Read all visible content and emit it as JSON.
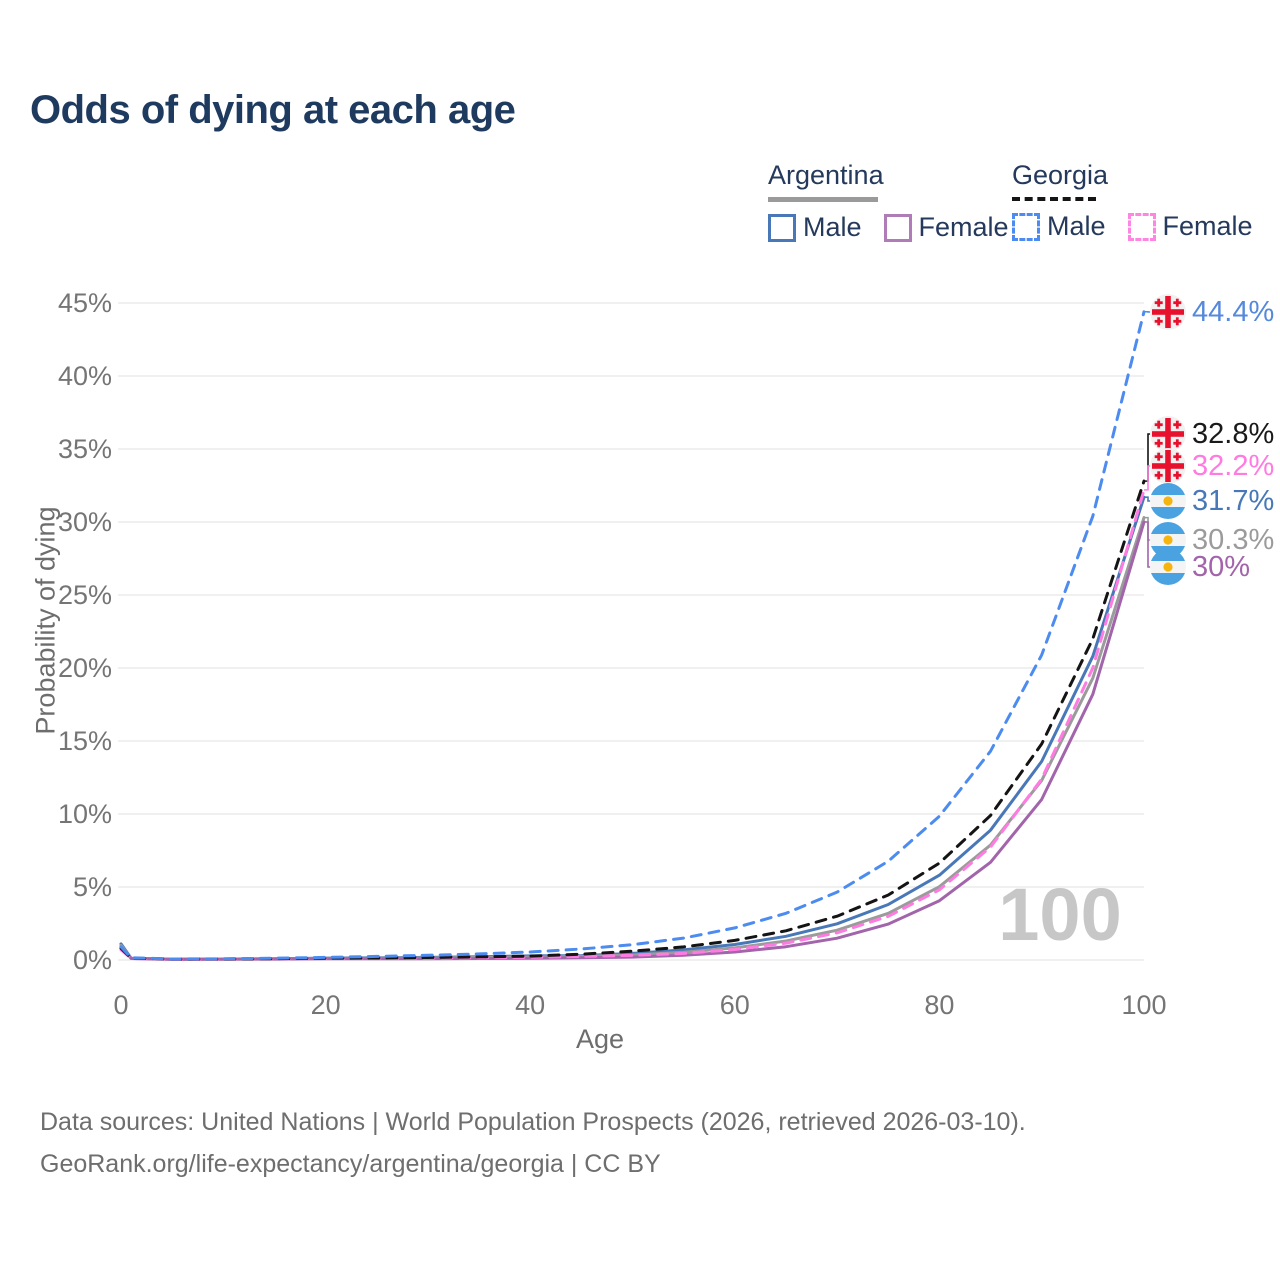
{
  "title": "Odds of dying at each age",
  "watermark": {
    "text": "100"
  },
  "legend": {
    "groups": [
      {
        "country": "Argentina",
        "style": "solid",
        "underline_color": "#9a9a9a",
        "items": [
          {
            "label": "Male",
            "color": "#4878B8"
          },
          {
            "label": "Female",
            "color": "#B07CB8"
          }
        ]
      },
      {
        "country": "Georgia",
        "style": "dashed",
        "underline_color": "#151515",
        "items": [
          {
            "label": "Male",
            "color": "#4C8BF0"
          },
          {
            "label": "Female",
            "color": "#FF85E3"
          }
        ]
      }
    ]
  },
  "axes": {
    "x": {
      "title": "Age",
      "ticks": [
        "0",
        "20",
        "40",
        "60",
        "80",
        "100"
      ]
    },
    "y": {
      "title": "Probability of dying",
      "ticks": [
        "0%",
        "5%",
        "10%",
        "15%",
        "20%",
        "25%",
        "30%",
        "35%",
        "40%",
        "45%"
      ]
    }
  },
  "footer": {
    "line1": "Data sources: United Nations | World Population Prospects (2026, retrieved 2026-03-10).",
    "line2": "GeoRank.org/life-expectancy/argentina/georgia | CC BY"
  },
  "chart_data": {
    "type": "line",
    "title": "Odds of dying at each age",
    "xlabel": "Age",
    "ylabel": "Probability of dying",
    "xlim": [
      0,
      100
    ],
    "ylim": [
      0,
      45
    ],
    "grid": "horizontal",
    "gridline_color": "#ececec",
    "xticks": [
      0,
      20,
      40,
      60,
      80,
      100
    ],
    "yticks": [
      0,
      5,
      10,
      15,
      20,
      25,
      30,
      35,
      40,
      45
    ],
    "hovered_age": 100,
    "x": [
      0,
      1,
      5,
      10,
      15,
      20,
      25,
      30,
      35,
      40,
      45,
      50,
      55,
      60,
      65,
      70,
      75,
      80,
      85,
      90,
      95,
      100
    ],
    "series": [
      {
        "name": "Argentina Male",
        "country": "Argentina",
        "sex": "Male",
        "color": "#4878B8",
        "dash": false,
        "values": [
          1.1,
          0.12,
          0.06,
          0.07,
          0.09,
          0.13,
          0.15,
          0.18,
          0.22,
          0.28,
          0.3,
          0.45,
          0.69,
          1.06,
          1.62,
          2.48,
          3.8,
          5.81,
          8.89,
          13.6,
          20.8,
          31.7
        ]
      },
      {
        "name": "Argentina Both",
        "country": "Argentina",
        "sex": "Both",
        "color": "#9b9b9b",
        "dash": false,
        "values": [
          1.0,
          0.11,
          0.05,
          0.06,
          0.08,
          0.11,
          0.12,
          0.14,
          0.17,
          0.2,
          0.25,
          0.34,
          0.53,
          0.83,
          1.3,
          2.04,
          3.2,
          5.02,
          7.87,
          12.3,
          19.3,
          30.3
        ]
      },
      {
        "name": "Argentina Female",
        "country": "Argentina",
        "sex": "Female",
        "color": "#A264AA",
        "dash": false,
        "values": [
          0.85,
          0.1,
          0.04,
          0.05,
          0.06,
          0.08,
          0.08,
          0.09,
          0.1,
          0.12,
          0.15,
          0.2,
          0.33,
          0.55,
          0.91,
          1.49,
          2.46,
          4.06,
          6.69,
          11.0,
          18.2,
          30.0
        ]
      },
      {
        "name": "Georgia Female",
        "country": "Georgia",
        "sex": "Female",
        "color": "#FF7BE1",
        "dash": true,
        "values": [
          0.7,
          0.1,
          0.05,
          0.06,
          0.08,
          0.1,
          0.11,
          0.12,
          0.15,
          0.18,
          0.25,
          0.32,
          0.45,
          0.72,
          1.16,
          1.86,
          2.99,
          4.81,
          7.73,
          12.4,
          20.0,
          32.2
        ]
      },
      {
        "name": "Georgia Both",
        "country": "Georgia",
        "sex": "Both",
        "color": "#141414",
        "dash": true,
        "values": [
          0.8,
          0.12,
          0.06,
          0.07,
          0.09,
          0.12,
          0.14,
          0.17,
          0.22,
          0.27,
          0.4,
          0.6,
          0.9,
          1.34,
          2.0,
          3.0,
          4.45,
          6.64,
          9.9,
          14.8,
          22.0,
          32.8
        ]
      },
      {
        "name": "Georgia Male",
        "country": "Georgia",
        "sex": "Male",
        "color": "#4C8BF0",
        "dash": true,
        "values": [
          0.9,
          0.15,
          0.07,
          0.08,
          0.12,
          0.18,
          0.25,
          0.32,
          0.42,
          0.55,
          0.75,
          1.05,
          1.5,
          2.2,
          3.2,
          4.65,
          6.77,
          9.85,
          14.3,
          20.9,
          30.4,
          44.4
        ]
      }
    ],
    "end_labels": [
      {
        "text": "44.4%",
        "value": 44.4,
        "color": "#5589DB",
        "line_color": "#4C8BF0",
        "flag": "georgia",
        "series": "Georgia Male"
      },
      {
        "text": "32.8%",
        "value": 32.8,
        "color": "#1a1a1a",
        "line_color": "#141414",
        "flag": "georgia",
        "series": "Georgia Both"
      },
      {
        "text": "32.2%",
        "value": 32.2,
        "color": "#FF7BE1",
        "line_color": "#FF7BE1",
        "flag": "georgia",
        "series": "Georgia Female"
      },
      {
        "text": "31.7%",
        "value": 31.7,
        "color": "#4878B8",
        "line_color": "#4878B8",
        "flag": "argentina",
        "series": "Argentina Male"
      },
      {
        "text": "30.3%",
        "value": 30.3,
        "color": "#9b9b9b",
        "line_color": "#9b9b9b",
        "flag": "argentina",
        "series": "Argentina Both"
      },
      {
        "text": "30%",
        "value": 30.0,
        "color": "#A264AA",
        "line_color": "#A264AA",
        "flag": "argentina",
        "series": "Argentina Female"
      }
    ],
    "flag_colors": {
      "georgia_red": "#E8112D",
      "georgia_bg": "#f1f1f1",
      "argentina_blue": "#4AA2E0",
      "argentina_white": "#f4f4f4",
      "argentina_sun": "#F6B40E"
    }
  }
}
